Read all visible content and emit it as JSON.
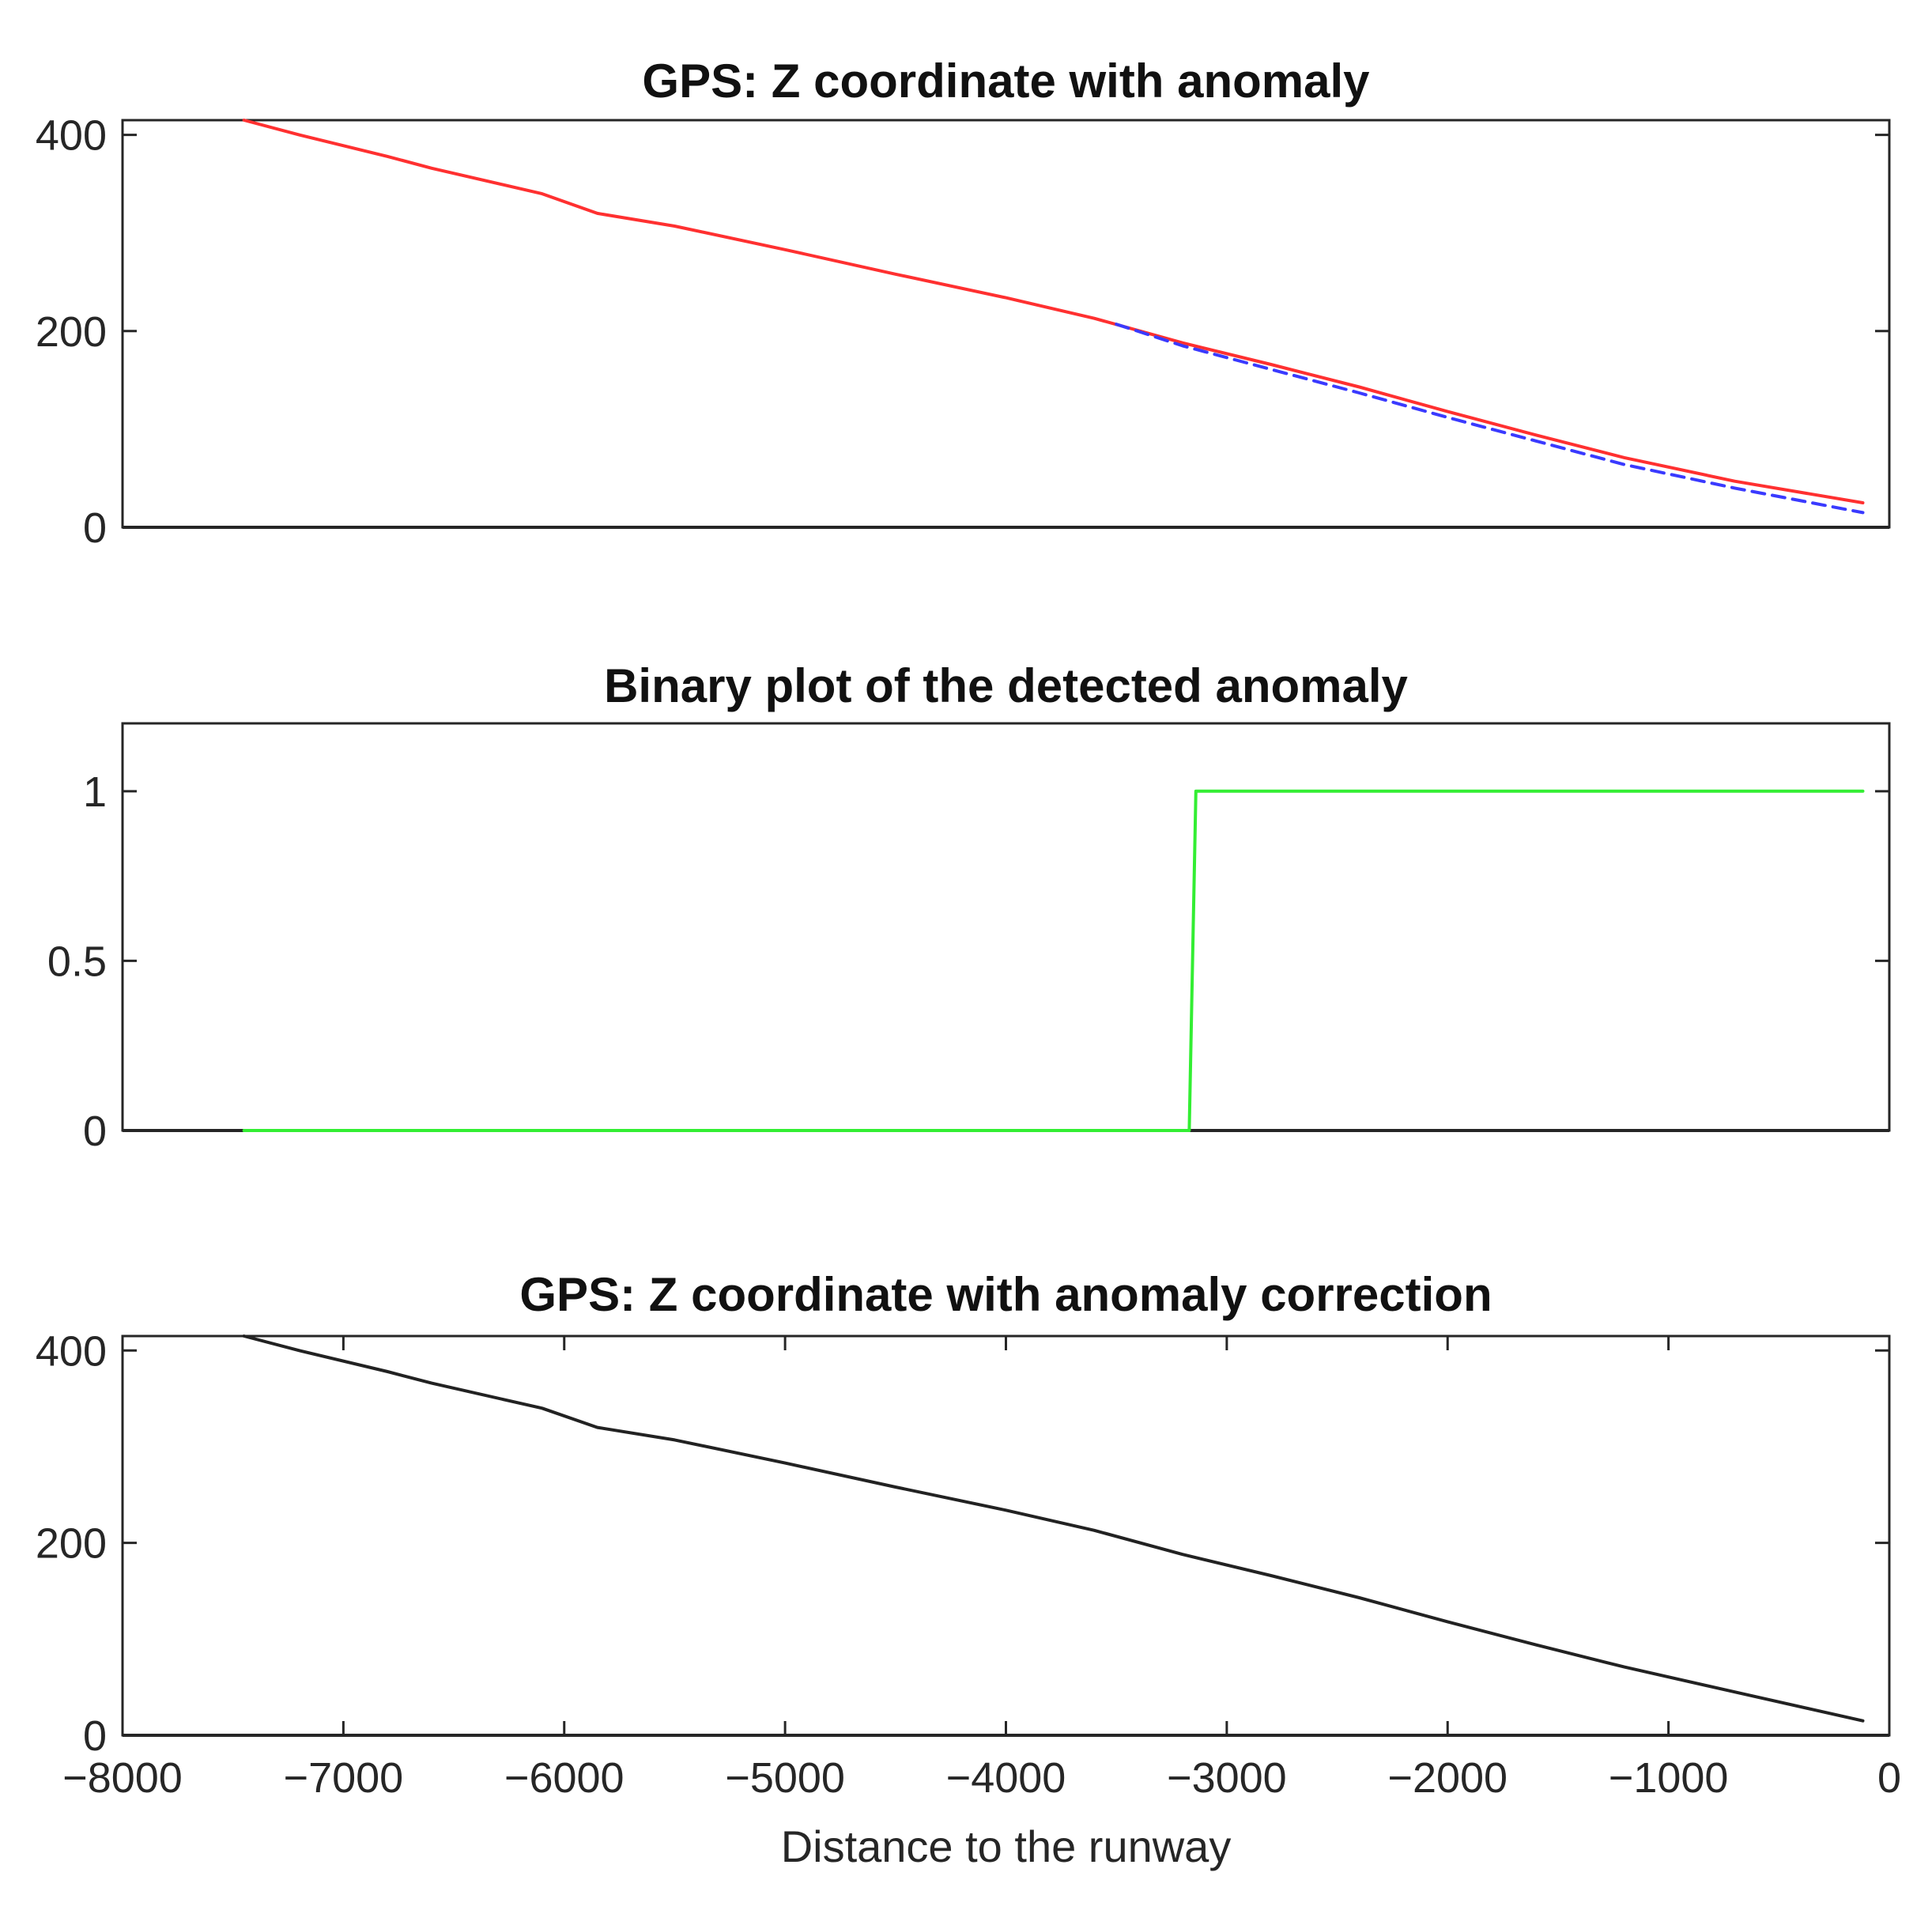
{
  "chart_data": [
    {
      "type": "line",
      "title": "GPS: Z coordinate with anomaly",
      "xlabel": "",
      "ylabel": "",
      "xlim": [
        -8000,
        0
      ],
      "ylim": [
        0,
        415
      ],
      "yticks": [
        0,
        200,
        400
      ],
      "xticks_shown": false,
      "grid": false,
      "series": [
        {
          "color": "#ff3030",
          "style": "solid",
          "x": [
            -7450,
            -7200,
            -6800,
            -6600,
            -6100,
            -5850,
            -5500,
            -5000,
            -4500,
            -4000,
            -3600,
            -3200,
            -2800,
            -2400,
            -2000,
            -1600,
            -1200,
            -700,
            -120
          ],
          "y": [
            415,
            400,
            378,
            366,
            340,
            320,
            307,
            283,
            258,
            234,
            213,
            188,
            166,
            143,
            118,
            94,
            71,
            47,
            25
          ]
        },
        {
          "color": "#3a3aff",
          "style": "dashed",
          "x": [
            -3500,
            -3200,
            -2800,
            -2400,
            -2000,
            -1600,
            -1200,
            -700,
            -120
          ],
          "y": [
            207,
            185,
            161,
            137,
            112,
            88,
            64,
            40,
            15
          ]
        }
      ]
    },
    {
      "type": "line",
      "title": "Binary plot of the detected anomaly",
      "xlabel": "",
      "ylabel": "",
      "xlim": [
        -8000,
        0
      ],
      "ylim": [
        0,
        1.2
      ],
      "yticks": [
        0,
        0.5,
        1
      ],
      "ytick_labels": [
        "0",
        "0.5",
        "1"
      ],
      "xticks_shown": false,
      "grid": false,
      "series": [
        {
          "color": "#33ee33",
          "style": "solid",
          "x": [
            -7450,
            -3170,
            -3140,
            -120
          ],
          "y": [
            0,
            0,
            1,
            1
          ]
        }
      ]
    },
    {
      "type": "line",
      "title": "GPS: Z coordinate with anomaly correction",
      "xlabel": "Distance to the runway",
      "ylabel": "",
      "xlim": [
        -8000,
        0
      ],
      "ylim": [
        0,
        415
      ],
      "yticks": [
        0,
        200,
        400
      ],
      "xticks": [
        -8000,
        -7000,
        -6000,
        -5000,
        -4000,
        -3000,
        -2000,
        -1000,
        0
      ],
      "xtick_labels": [
        "−8000",
        "−7000",
        "−6000",
        "−5000",
        "−4000",
        "−3000",
        "−2000",
        "−1000",
        "0"
      ],
      "grid": false,
      "series": [
        {
          "color": "#222222",
          "style": "solid",
          "x": [
            -7450,
            -7200,
            -6800,
            -6600,
            -6100,
            -5850,
            -5500,
            -5000,
            -4500,
            -4000,
            -3600,
            -3200,
            -2800,
            -2400,
            -2000,
            -1600,
            -1200,
            -700,
            -120
          ],
          "y": [
            415,
            400,
            378,
            366,
            340,
            320,
            307,
            283,
            258,
            234,
            213,
            188,
            166,
            143,
            118,
            94,
            71,
            45,
            15
          ]
        }
      ]
    }
  ]
}
